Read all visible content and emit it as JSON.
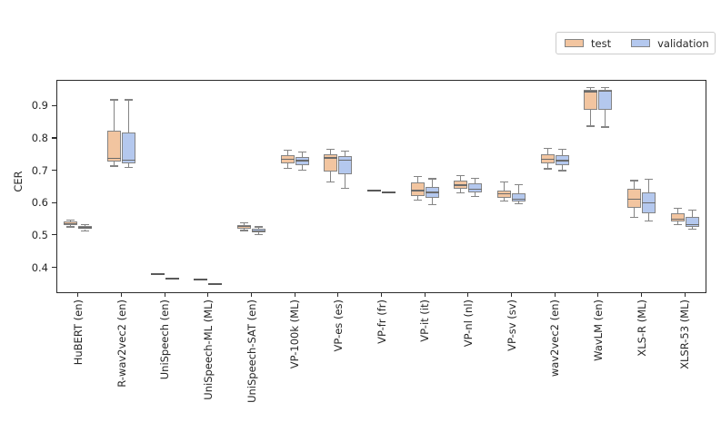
{
  "figure": {
    "background": "#ffffff"
  },
  "colors": {
    "test_fill": "#f2c5a0",
    "validation_fill": "#b4c8ee",
    "box_edge": "#848484",
    "whisker": "#848484",
    "median": "#6b6b6b",
    "flat_dash": "#5a5a5a",
    "axis": "#2b2b2b",
    "tick_text": "#262626",
    "legend_border": "#cccccc"
  },
  "chart_data": {
    "type": "boxplot",
    "title": "",
    "xlabel": "",
    "ylabel": "CER",
    "ylim": [
      0.32,
      0.98
    ],
    "yticks": [
      0.4,
      0.5,
      0.6,
      0.7,
      0.8,
      0.9
    ],
    "grid": false,
    "legend_position": "upper-right-above-axes",
    "categories": [
      "HuBERT (en)",
      "R-wav2vec2 (en)",
      "UniSpeech (en)",
      "UniSpeech-ML (ML)",
      "UniSpeech-SAT (en)",
      "VP-100k (ML)",
      "VP-es (es)",
      "VP-fr (fr)",
      "VP-it (it)",
      "VP-nl (nl)",
      "VP-sv (sv)",
      "wav2vec2 (en)",
      "WavLM (en)",
      "XLS-R (ML)",
      "XLSR-53 (ML)"
    ],
    "series": [
      {
        "name": "test",
        "color": "#f2c5a0",
        "boxes": [
          {
            "whislo": 0.525,
            "q1": 0.531,
            "med": 0.535,
            "q3": 0.541,
            "whishi": 0.546
          },
          {
            "whislo": 0.713,
            "q1": 0.728,
            "med": 0.737,
            "q3": 0.822,
            "whishi": 0.918
          },
          {
            "whislo": 0.38,
            "q1": 0.38,
            "med": 0.38,
            "q3": 0.38,
            "whishi": 0.38
          },
          {
            "whislo": 0.363,
            "q1": 0.363,
            "med": 0.363,
            "q3": 0.363,
            "whishi": 0.363
          },
          {
            "whislo": 0.514,
            "q1": 0.52,
            "med": 0.526,
            "q3": 0.532,
            "whishi": 0.538
          },
          {
            "whislo": 0.706,
            "q1": 0.721,
            "med": 0.734,
            "q3": 0.748,
            "whishi": 0.762
          },
          {
            "whislo": 0.663,
            "q1": 0.697,
            "med": 0.738,
            "q3": 0.75,
            "whishi": 0.764
          },
          {
            "whislo": 0.638,
            "q1": 0.638,
            "med": 0.638,
            "q3": 0.638,
            "whishi": 0.638
          },
          {
            "whislo": 0.607,
            "q1": 0.621,
            "med": 0.638,
            "q3": 0.663,
            "whishi": 0.681
          },
          {
            "whislo": 0.63,
            "q1": 0.644,
            "med": 0.654,
            "q3": 0.667,
            "whishi": 0.684
          },
          {
            "whislo": 0.604,
            "q1": 0.615,
            "med": 0.627,
            "q3": 0.637,
            "whishi": 0.663
          },
          {
            "whislo": 0.705,
            "q1": 0.721,
            "med": 0.734,
            "q3": 0.75,
            "whishi": 0.769
          },
          {
            "whislo": 0.837,
            "q1": 0.886,
            "med": 0.944,
            "q3": 0.948,
            "whishi": 0.956
          },
          {
            "whislo": 0.555,
            "q1": 0.585,
            "med": 0.61,
            "q3": 0.642,
            "whishi": 0.668
          },
          {
            "whislo": 0.533,
            "q1": 0.542,
            "med": 0.549,
            "q3": 0.567,
            "whishi": 0.583
          }
        ]
      },
      {
        "name": "validation",
        "color": "#b4c8ee",
        "boxes": [
          {
            "whislo": 0.512,
            "q1": 0.518,
            "med": 0.522,
            "q3": 0.527,
            "whishi": 0.532
          },
          {
            "whislo": 0.709,
            "q1": 0.722,
            "med": 0.732,
            "q3": 0.817,
            "whishi": 0.918
          },
          {
            "whislo": 0.366,
            "q1": 0.366,
            "med": 0.366,
            "q3": 0.366,
            "whishi": 0.366
          },
          {
            "whislo": 0.349,
            "q1": 0.349,
            "med": 0.349,
            "q3": 0.349,
            "whishi": 0.349
          },
          {
            "whislo": 0.501,
            "q1": 0.507,
            "med": 0.513,
            "q3": 0.519,
            "whishi": 0.525
          },
          {
            "whislo": 0.7,
            "q1": 0.716,
            "med": 0.73,
            "q3": 0.742,
            "whishi": 0.757
          },
          {
            "whislo": 0.644,
            "q1": 0.688,
            "med": 0.731,
            "q3": 0.743,
            "whishi": 0.759
          },
          {
            "whislo": 0.632,
            "q1": 0.632,
            "med": 0.632,
            "q3": 0.632,
            "whishi": 0.632
          },
          {
            "whislo": 0.593,
            "q1": 0.615,
            "med": 0.632,
            "q3": 0.649,
            "whishi": 0.674
          },
          {
            "whislo": 0.619,
            "q1": 0.631,
            "med": 0.641,
            "q3": 0.66,
            "whishi": 0.675
          },
          {
            "whislo": 0.596,
            "q1": 0.605,
            "med": 0.611,
            "q3": 0.629,
            "whishi": 0.655
          },
          {
            "whislo": 0.699,
            "q1": 0.715,
            "med": 0.73,
            "q3": 0.746,
            "whishi": 0.766
          },
          {
            "whislo": 0.834,
            "q1": 0.888,
            "med": 0.945,
            "q3": 0.95,
            "whishi": 0.957
          },
          {
            "whislo": 0.544,
            "q1": 0.568,
            "med": 0.6,
            "q3": 0.633,
            "whishi": 0.672
          },
          {
            "whislo": 0.519,
            "q1": 0.525,
            "med": 0.532,
            "q3": 0.556,
            "whishi": 0.576
          }
        ]
      }
    ]
  }
}
